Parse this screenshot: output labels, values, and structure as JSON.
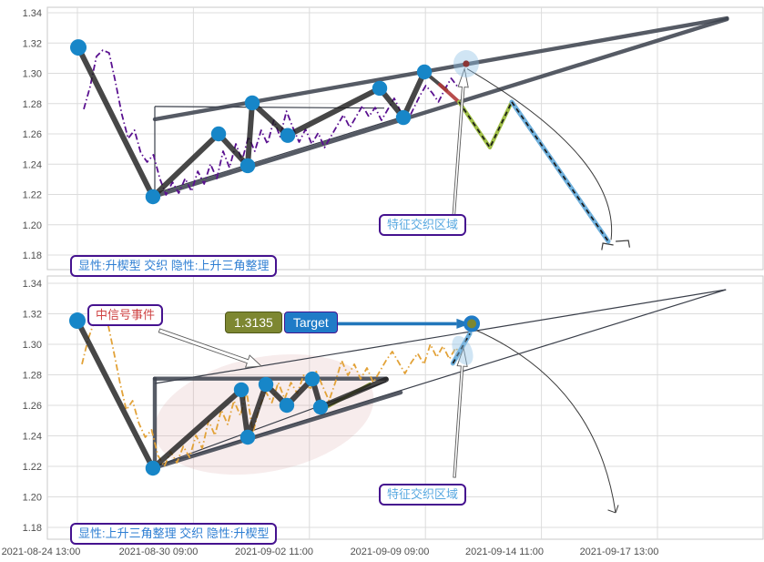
{
  "axes": {
    "x_labels": [
      "2021-08-24 13:00",
      "2021-08-30 09:00",
      "2021-09-02 11:00",
      "2021-09-09 09:00",
      "2021-09-14 11:00",
      "2021-09-17 13:00"
    ],
    "y_labels": [
      "1.34",
      "1.32",
      "1.30",
      "1.28",
      "1.26",
      "1.24",
      "1.22",
      "1.20",
      "1.18"
    ]
  },
  "annotations": {
    "top_pattern": "显性:升楔型 交织 隐性:上升三角整理",
    "top_area": "特征交织区域",
    "bottom_pattern": "显性:上升三角整理 交织 隐性:升楔型",
    "bottom_area": "特征交织区域",
    "signal_event": "中信号事件",
    "target_value": "1.3135",
    "target_label": "Target"
  },
  "colors": {
    "dot": "#1786c8",
    "zigzag": "#1e1e1e",
    "trend": "#3f4450",
    "thin": "#3a3f4a",
    "overlay_top": "#5a1190",
    "overlay_bottom": "#e2a238",
    "green": "#9fbf45",
    "blue_dash": "#6fb0dc",
    "red": "#b03a3a",
    "olive": "#8a9437",
    "halo": "#8fc0e4",
    "pink": "#d9a0a0",
    "grid": "#dcdcdc",
    "border": "#c9c9c9",
    "axis_text": "#4f4f4f",
    "arrow_blue": "#2277bb",
    "white_arrow_stroke": "#5a5a5a",
    "highlight_red": "#8b3535",
    "target_olive": "#7d8731",
    "target_blue": "#1f7bc7",
    "label_border": "#45128f"
  },
  "chart_data": [
    {
      "type": "line",
      "panel": "top",
      "pattern_explicit": "升楔型",
      "pattern_hidden": "上升三角整理",
      "x_ticks": [
        "2021-08-24 13:00",
        "2021-08-30 09:00",
        "2021-09-02 11:00",
        "2021-09-09 09:00",
        "2021-09-14 11:00",
        "2021-09-17 13:00"
      ],
      "ylim": [
        1.18,
        1.34
      ],
      "main": [
        [
          0.008,
          1.3171
        ],
        [
          0.651,
          1.2185
        ],
        [
          1.217,
          1.26
        ],
        [
          1.468,
          1.239
        ],
        [
          1.507,
          1.2805
        ],
        [
          1.813,
          1.259
        ],
        [
          2.606,
          1.2901
        ],
        [
          2.81,
          1.2708
        ],
        [
          2.991,
          1.3009
        ]
      ],
      "connector": [
        [
          2.991,
          1.3009
        ],
        [
          3.18,
          1.289
        ]
      ],
      "red_segment": [
        [
          3.124,
          1.2925
        ],
        [
          3.297,
          1.2805
        ]
      ],
      "green_v": [
        [
          3.29,
          1.2811
        ],
        [
          3.556,
          1.251
        ],
        [
          3.744,
          1.2811
        ]
      ],
      "blue_dashed": [
        [
          3.744,
          1.2811
        ],
        [
          4.576,
          1.189
        ]
      ],
      "wedge_upper": [
        [
          0.667,
          1.2696
        ],
        [
          5.6,
          1.3364
        ]
      ],
      "wedge_lower": [
        [
          0.651,
          1.2185
        ],
        [
          5.6,
          1.3358
        ]
      ],
      "thin_lines": [
        [
          [
            0.667,
            1.2781
          ],
          [
            0.667,
            1.2203
          ]
        ],
        [
          [
            0.667,
            1.2781
          ],
          [
            2.645,
            1.277
          ]
        ],
        [
          [
            0.651,
            1.2203
          ],
          [
            2.81,
            1.2714
          ]
        ]
      ],
      "highlight_point": [
        3.351,
        1.3063
      ],
      "halo": {
        "c": [
          3.351,
          1.3063
        ],
        "rx": 14,
        "ry": 15,
        "rot": 0
      },
      "arc": {
        "pts": [
          [
            3.36,
            1.303
          ],
          [
            4.682,
            1.2434
          ],
          [
            4.6,
            1.19
          ]
        ],
        "arrow": false
      },
      "brackets": [
        [
          [
            4.52,
            1.1833
          ],
          [
            4.53,
            1.1878
          ],
          [
            4.62,
            1.1866
          ]
        ],
        [
          [
            4.64,
            1.189
          ],
          [
            4.75,
            1.1896
          ],
          [
            4.76,
            1.185
          ]
        ]
      ],
      "white_arrows": [
        {
          "from": [
            3.235,
            1.1962
          ],
          "to": [
            3.337,
            1.303
          ],
          "sw": 1.3,
          "hw": 5.5,
          "hl": 20
        }
      ],
      "overlay": {
        "t0": 0.055,
        "dt": 0.0546,
        "prices": [
          1.2763,
          1.2913,
          1.3111,
          1.3153,
          1.3135,
          1.2943,
          1.2732,
          1.257,
          1.2624,
          1.2474,
          1.2414,
          1.2462,
          1.2305,
          1.2197,
          1.2281,
          1.2209,
          1.2305,
          1.2221,
          1.2353,
          1.2269,
          1.2401,
          1.2305,
          1.2486,
          1.2377,
          1.2534,
          1.2425,
          1.2582,
          1.2486,
          1.2624,
          1.2534,
          1.269,
          1.2582,
          1.275,
          1.2642,
          1.2546,
          1.263,
          1.2534,
          1.2606,
          1.251,
          1.2582,
          1.2654,
          1.2726,
          1.2642,
          1.2714,
          1.2786,
          1.2714,
          1.2774,
          1.269,
          1.2762,
          1.2835,
          1.275,
          1.2678,
          1.2762,
          1.2847,
          1.2919,
          1.2871,
          1.2811,
          1.2895,
          1.2967,
          1.2913
        ]
      }
    },
    {
      "type": "line",
      "panel": "bottom",
      "pattern_explicit": "上升三角整理",
      "pattern_hidden": "升楔型",
      "x_ticks": [
        "2021-08-24 13:00",
        "2021-08-30 09:00",
        "2021-09-02 11:00",
        "2021-09-09 09:00",
        "2021-09-14 11:00",
        "2021-09-17 13:00"
      ],
      "ylim": [
        1.18,
        1.34
      ],
      "target_price": 1.3135,
      "main": [
        [
          0,
          1.3155
        ],
        [
          0.651,
          1.2188
        ],
        [
          1.413,
          1.2702
        ],
        [
          1.468,
          1.2391
        ],
        [
          1.625,
          1.2737
        ],
        [
          1.805,
          1.26
        ],
        [
          2.025,
          1.2773
        ],
        [
          2.096,
          1.2588
        ],
        [
          2.661,
          1.277
        ]
      ],
      "dots_count": 8,
      "olive_segment": [
        [
          2.11,
          1.257
        ],
        [
          2.53,
          1.2745
        ]
      ],
      "tri_vertical": [
        [
          0.667,
          1.2775
        ],
        [
          0.667,
          1.2195
        ]
      ],
      "tri_top": [
        [
          0.667,
          1.2775
        ],
        [
          2.661,
          1.2775
        ]
      ],
      "tri_support": [
        [
          0.651,
          1.2188
        ],
        [
          2.787,
          1.2684
        ]
      ],
      "thin_lines": [
        [
          [
            0.651,
            1.2194
          ],
          [
            2.661,
            1.2755
          ]
        ],
        [
          [
            0.667,
            1.2743
          ],
          [
            5.59,
            1.3358
          ]
        ],
        [
          [
            0.651,
            1.2194
          ],
          [
            5.59,
            1.3358
          ]
        ]
      ],
      "blue_dashed": [
        [
          3.236,
          1.2875
        ],
        [
          3.383,
          1.307
        ]
      ],
      "halo": {
        "c": [
          3.32,
          1.296
        ],
        "rx": 10,
        "ry": 17,
        "rot": -25
      },
      "target_dot": [
        3.399,
        1.3135
      ],
      "target_arrow": [
        [
          2.213,
          1.3135
        ],
        [
          3.3,
          1.3135
        ]
      ],
      "arc": {
        "pts": [
          [
            3.414,
            1.31
          ],
          [
            4.474,
            1.2749
          ],
          [
            4.639,
            1.1896
          ]
        ],
        "arrow": true
      },
      "white_arrows": [
        {
          "from": [
            3.25,
            1.2128
          ],
          "to": [
            3.328,
            1.2976
          ],
          "sw": 1.3,
          "hw": 5.5,
          "hl": 20
        },
        {
          "from": [
            0.706,
            1.309
          ],
          "to": [
            1.586,
            1.2857
          ],
          "sw": 2,
          "hw": 7,
          "hl": 16
        }
      ],
      "ellipse": {
        "c": [
          1.609,
          1.254
        ],
        "rx": 122,
        "ry": 63,
        "rot": -11
      },
      "overlay": {
        "t0": 0.039,
        "dt": 0.0546,
        "prices": [
          1.2869,
          1.3036,
          1.3155,
          1.3185,
          1.3155,
          1.2958,
          1.2749,
          1.257,
          1.263,
          1.2481,
          1.2391,
          1.2439,
          1.2272,
          1.22,
          1.2296,
          1.2224,
          1.2331,
          1.226,
          1.2403,
          1.2319,
          1.2499,
          1.2403,
          1.257,
          1.2475,
          1.263,
          1.2534,
          1.269,
          1.2421,
          1.2582,
          1.269,
          1.2618,
          1.2749,
          1.2642,
          1.2749,
          1.2678,
          1.2797,
          1.2702,
          1.2821,
          1.2726,
          1.263,
          1.2749,
          1.2893,
          1.2797,
          1.2869,
          1.2773,
          1.2845,
          1.2749,
          1.2821,
          1.2893,
          1.2952,
          1.2881,
          1.2809,
          1.2881,
          1.294,
          1.2869,
          1.3,
          1.2916,
          1.2988,
          1.2904,
          1.2976,
          1.2928
        ]
      }
    }
  ]
}
